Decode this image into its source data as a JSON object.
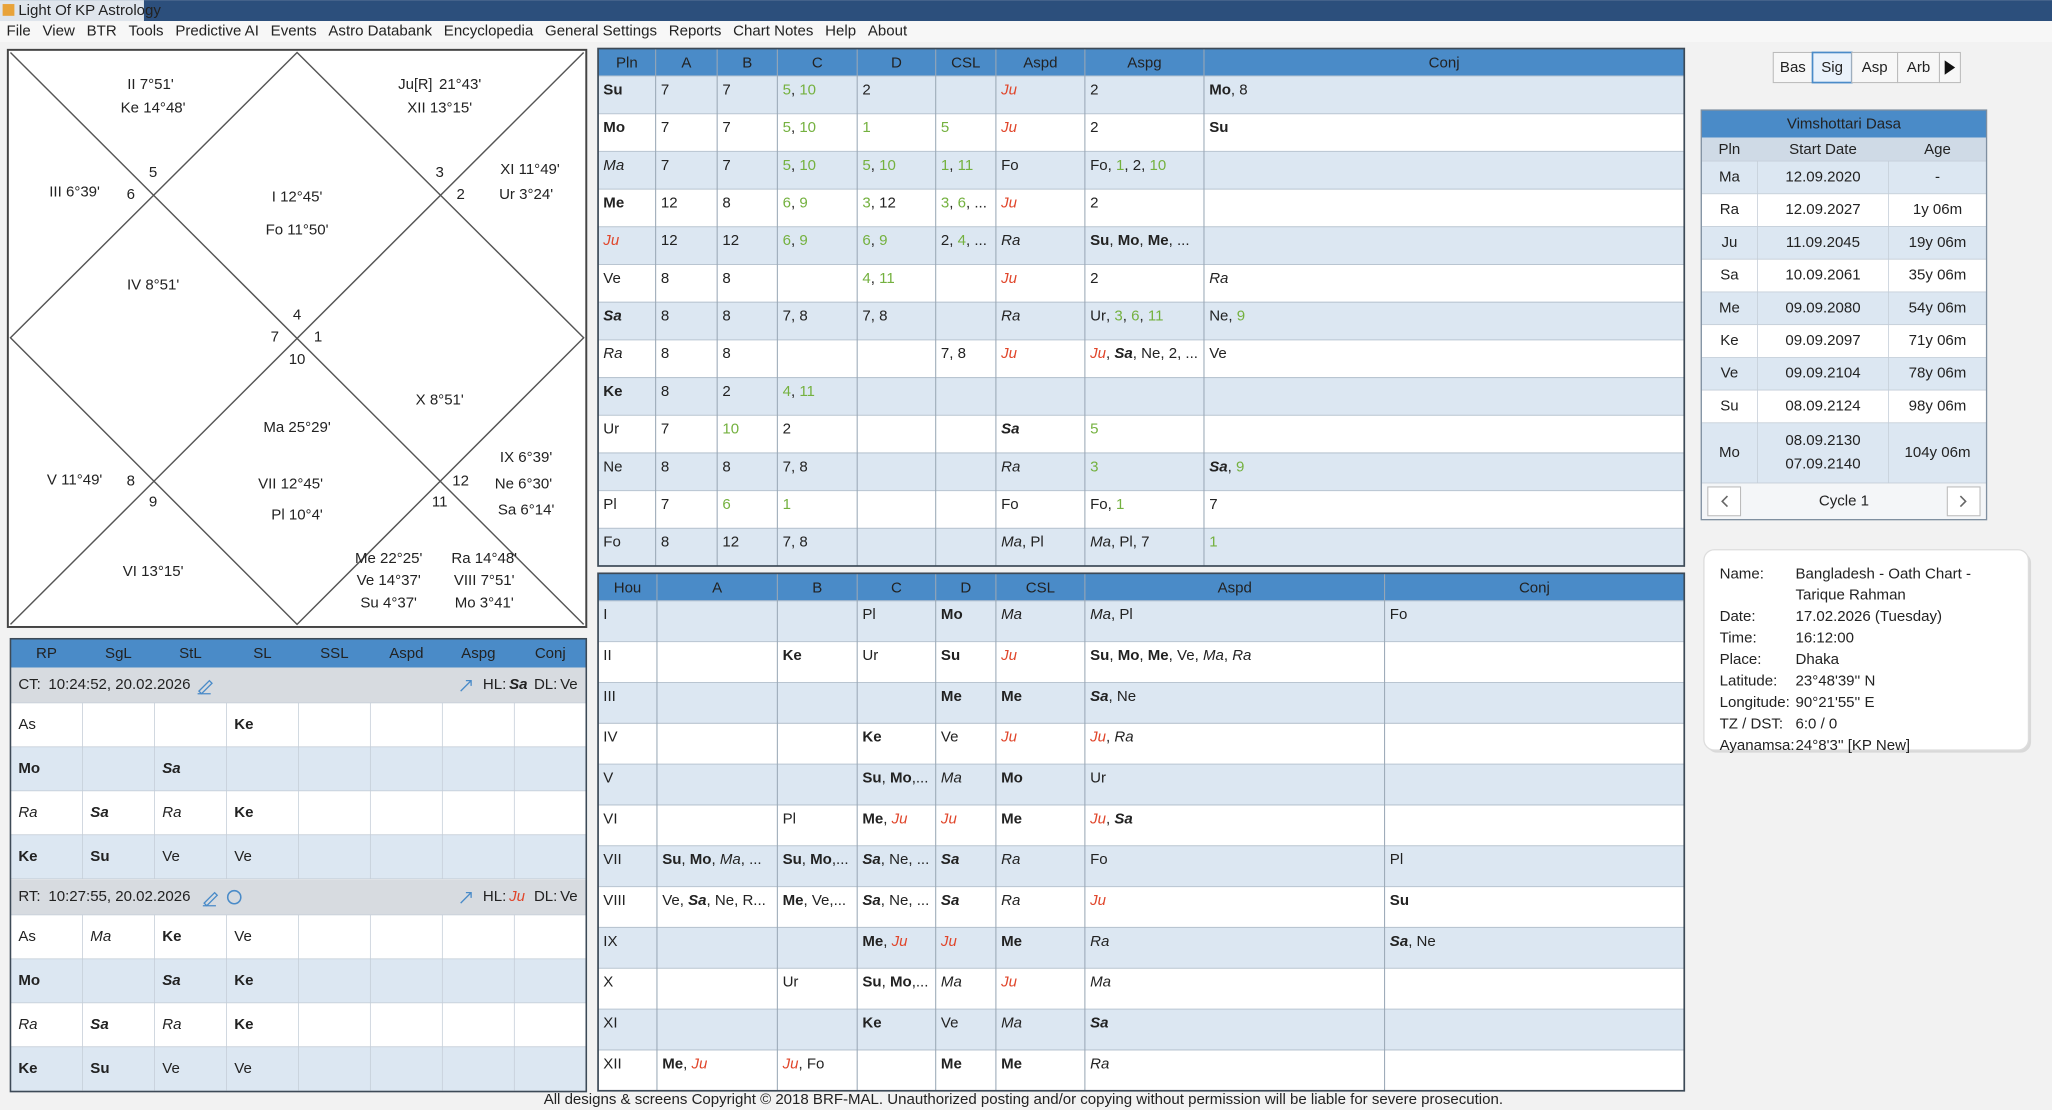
{
  "title_bar": "Light Of KP Astrology",
  "menu": [
    "File",
    "View",
    "BTR",
    "Tools",
    "Predictive AI",
    "Events",
    "Astro Databank",
    "Encyclopedia",
    "General Settings",
    "Reports",
    "Chart Notes",
    "Help",
    "About"
  ],
  "chart": {
    "items": [
      {
        "text": "II 7°51'",
        "color": "#f0b62c"
      },
      {
        "text": "Ke 14°48'",
        "color": "#2f74b5"
      },
      {
        "text": "Ju",
        "retro": "[R]",
        "degree": "21°43'",
        "color": "#2f74b5"
      },
      {
        "text": "XII 13°15'",
        "color": "#f0b62c"
      },
      {
        "text": "III 6°39'",
        "color": "#f0b62c"
      },
      {
        "text": "5",
        "color": "#222222"
      },
      {
        "text": "6",
        "color": "#222222"
      },
      {
        "text": "I 12°45'",
        "color": "#f0b62c"
      },
      {
        "text": "Fo 11°50'",
        "color": "#2f74b5"
      },
      {
        "text": "3",
        "color": "#222222"
      },
      {
        "text": "2",
        "color": "#222222"
      },
      {
        "text": "XI 11°49'",
        "color": "#f0b62c"
      },
      {
        "text": "Ur 3°24'",
        "color": "#2f74b5"
      },
      {
        "text": "IV 8°51'",
        "color": "#f0b62c"
      },
      {
        "text": "4",
        "color": "#222222"
      },
      {
        "text": "7",
        "color": "#222222"
      },
      {
        "text": "1",
        "color": "#222222"
      },
      {
        "text": "10",
        "color": "#222222"
      },
      {
        "text": "X 8°51'",
        "color": "#f0b62c"
      },
      {
        "text": "Ma 25°29'",
        "color": "#2f74b5"
      },
      {
        "text": "V 11°49'",
        "color": "#f0b62c"
      },
      {
        "text": "8",
        "color": "#222222"
      },
      {
        "text": "9",
        "color": "#222222"
      },
      {
        "text": "VII 12°45'",
        "color": "#f0b62c"
      },
      {
        "text": "Pl 10°4'",
        "color": "#2f74b5"
      },
      {
        "text": "IX 6°39'",
        "color": "#f0b62c"
      },
      {
        "text": "12",
        "color": "#222222"
      },
      {
        "text": "11",
        "color": "#222222"
      },
      {
        "text": "Ne 6°30'",
        "color": "#2f74b5"
      },
      {
        "text": "Sa 6°14'",
        "color": "#2f74b5"
      },
      {
        "text": "VI 13°15'",
        "color": "#f0b62c"
      },
      {
        "text": "Me 22°25'",
        "color": "#2f74b5"
      },
      {
        "text": "Ra 14°48'",
        "color": "#2f74b5"
      },
      {
        "text": "Ve 14°37'",
        "color": "#2f74b5"
      },
      {
        "text": "VIII 7°51'",
        "color": "#f0b62c"
      },
      {
        "text": "Su 4°37'",
        "color": "#2f74b5"
      },
      {
        "text": "Mo 3°41'",
        "color": "#2f74b5"
      }
    ]
  },
  "token_styles": {
    "Su": "bold",
    "Mo": "bold",
    "Me": "bold",
    "Ke": "bold",
    "Ma": "italic",
    "Ra": "italic",
    "Sa": "bold-italic",
    "Ju": "red-italic",
    "1": "green",
    "3": "green",
    "4": "green",
    "5": "green",
    "6": "green",
    "9": "green",
    "10": "green",
    "11": "green"
  },
  "planet_table": {
    "headers": [
      "Pln",
      "A",
      "B",
      "C",
      "D",
      "CSL",
      "Aspd",
      "Aspg",
      "Conj"
    ],
    "rows": [
      [
        "Su",
        "7",
        "7",
        "5, 10",
        "2",
        null,
        "Ju",
        "2",
        "Mo, 8"
      ],
      [
        "Mo",
        "7",
        "7",
        "5, 10",
        "1",
        "5",
        "Ju",
        "2",
        "Su"
      ],
      [
        "Ma",
        "7",
        "7",
        "5, 10",
        "5, 10",
        "1, 11",
        "Fo",
        "Fo, 1, 2, 10",
        null
      ],
      [
        "Me",
        "12",
        "8",
        "6, 9",
        "3, 12",
        "3, 6, ...",
        "Ju",
        "2",
        null
      ],
      [
        "Ju",
        "12",
        "12",
        "6, 9",
        "6, 9",
        "2, 4, ...",
        "Ra",
        "Su, Mo, Me, ...",
        null
      ],
      [
        "Ve",
        "8",
        "8",
        null,
        "4, 11",
        null,
        "Ju",
        "2",
        "Ra"
      ],
      [
        "Sa",
        "8",
        "8",
        "7, 8",
        "7, 8",
        null,
        "Ra",
        "Ur, 3, 6, 11",
        "Ne, 9"
      ],
      [
        "Ra",
        "8",
        "8",
        null,
        null,
        "7, 8",
        "Ju",
        "Ju, Sa, Ne, 2, ...",
        "Ve"
      ],
      [
        "Ke",
        "8",
        "2",
        "4, 11",
        null,
        null,
        null,
        null,
        null
      ],
      [
        "Ur",
        "7",
        "10",
        "2",
        null,
        null,
        "Sa",
        "5",
        null
      ],
      [
        "Ne",
        "8",
        "8",
        "7, 8",
        null,
        null,
        "Ra",
        "3",
        "Sa, 9"
      ],
      [
        "Pl",
        "7",
        "6",
        "1",
        null,
        null,
        "Fo",
        "Fo, 1",
        "7"
      ],
      [
        "Fo",
        "8",
        "12",
        "7, 8",
        null,
        null,
        "Ma, Pl",
        "Ma, Pl, 7",
        "1"
      ]
    ]
  },
  "house_table": {
    "headers": [
      "Hou",
      "A",
      "B",
      "C",
      "D",
      "CSL",
      "Aspd",
      "Conj"
    ],
    "rows": [
      [
        "I",
        null,
        null,
        "Pl",
        "Mo",
        "Ma",
        "Ma, Pl",
        "Fo"
      ],
      [
        "II",
        null,
        "Ke",
        "Ur",
        "Su",
        "Ju",
        "Su, Mo, Me, Ve, Ma, Ra",
        null
      ],
      [
        "III",
        null,
        null,
        null,
        "Me",
        "Me",
        "Sa, Ne",
        null
      ],
      [
        "IV",
        null,
        null,
        "Ke",
        "Ve",
        "Ju",
        "Ju, Ra",
        null
      ],
      [
        "V",
        null,
        null,
        "Su, Mo,...",
        "Ma",
        "Mo",
        "Ur",
        null
      ],
      [
        "VI",
        null,
        "Pl",
        "Me, Ju",
        "Ju",
        "Me",
        "Ju, Sa",
        null
      ],
      [
        "VII",
        "Su, Mo, Ma, ...",
        "Su, Mo,...",
        "Sa, Ne, ...",
        "Sa",
        "Ra",
        "Fo",
        "Pl"
      ],
      [
        "VIII",
        "Ve, Sa, Ne, R...",
        "Me, Ve,...",
        "Sa, Ne, ...",
        "Sa",
        "Ra",
        "Ju",
        "Su"
      ],
      [
        "IX",
        null,
        null,
        "Me, Ju",
        "Ju",
        "Me",
        "Ra",
        "Sa, Ne"
      ],
      [
        "X",
        null,
        "Ur",
        "Su, Mo,...",
        "Ma",
        "Ju",
        "Ma",
        null
      ],
      [
        "XI",
        null,
        null,
        "Ke",
        "Ve",
        "Ma",
        "Sa",
        null
      ],
      [
        "XII",
        "Me, Ju",
        "Ju, Fo",
        null,
        "Me",
        "Me",
        "Ra",
        null
      ]
    ]
  },
  "rp_panel": {
    "headers": [
      "RP",
      "SgL",
      "StL",
      "SL",
      "SSL",
      "Aspd",
      "Aspg",
      "Conj"
    ],
    "blocks": [
      {
        "label": "CT:",
        "time": "10:24:52, 20.02.2026",
        "hl_label": "HL:",
        "hl": "Sa",
        "dl_label": "DL:",
        "dl": "Ve",
        "rows": [
          [
            "As",
            null,
            null,
            "Ke"
          ],
          [
            "Mo",
            null,
            "Sa",
            null
          ],
          [
            "Ra",
            "Sa",
            "Ra",
            "Ke"
          ],
          [
            "Ke",
            "Su",
            "Ve",
            "Ve"
          ]
        ]
      },
      {
        "label": "RT:",
        "time": "10:27:55, 20.02.2026",
        "hl_label": "HL:",
        "hl": "Ju",
        "dl_label": "DL:",
        "dl": "Ve",
        "rows": [
          [
            "As",
            "Ma",
            "Ke",
            "Ve"
          ],
          [
            "Mo",
            null,
            "Sa",
            "Ke"
          ],
          [
            "Ra",
            "Sa",
            "Ra",
            "Ke"
          ],
          [
            "Ke",
            "Su",
            "Ve",
            "Ve"
          ]
        ]
      }
    ]
  },
  "tabs": {
    "items": [
      "Bas",
      "Sig",
      "Asp",
      "Arb"
    ],
    "selected": 1
  },
  "dasa": {
    "title": "Vimshottari Dasa",
    "headers": [
      "Pln",
      "Start Date",
      "Age"
    ],
    "rows": [
      [
        "Ma",
        "12.09.2020",
        "-"
      ],
      [
        "Ra",
        "12.09.2027",
        "1y 06m"
      ],
      [
        "Ju",
        "11.09.2045",
        "19y 06m"
      ],
      [
        "Sa",
        "10.09.2061",
        "35y 06m"
      ],
      [
        "Me",
        "09.09.2080",
        "54y 06m"
      ],
      [
        "Ke",
        "09.09.2097",
        "71y 06m"
      ],
      [
        "Ve",
        "09.09.2104",
        "78y 06m"
      ],
      [
        "Su",
        "08.09.2124",
        "98y 06m"
      ],
      [
        "Mo",
        [
          "08.09.2130",
          "07.09.2140"
        ],
        "104y 06m"
      ]
    ],
    "cycle": "Cycle 1"
  },
  "info": {
    "rows": [
      [
        "Name:",
        "Bangladesh - Oath Chart - Tarique Rahman"
      ],
      [
        "Date:",
        "17.02.2026 (Tuesday)"
      ],
      [
        "Time:",
        "16:12:00"
      ],
      [
        "Place:",
        "Dhaka"
      ],
      [
        "Latitude:",
        "23°48'39'' N"
      ],
      [
        "Longitude:",
        "90°21'55'' E"
      ],
      [
        "TZ / DST:",
        "6:0 / 0"
      ],
      [
        "Ayanamsa:",
        "24°8'3'' [KP New]"
      ]
    ]
  },
  "footer": "All designs & screens Copyright © 2018 BRF-MAL. Unauthorized posting and/or copying without permission will be liable for severe prosecution."
}
